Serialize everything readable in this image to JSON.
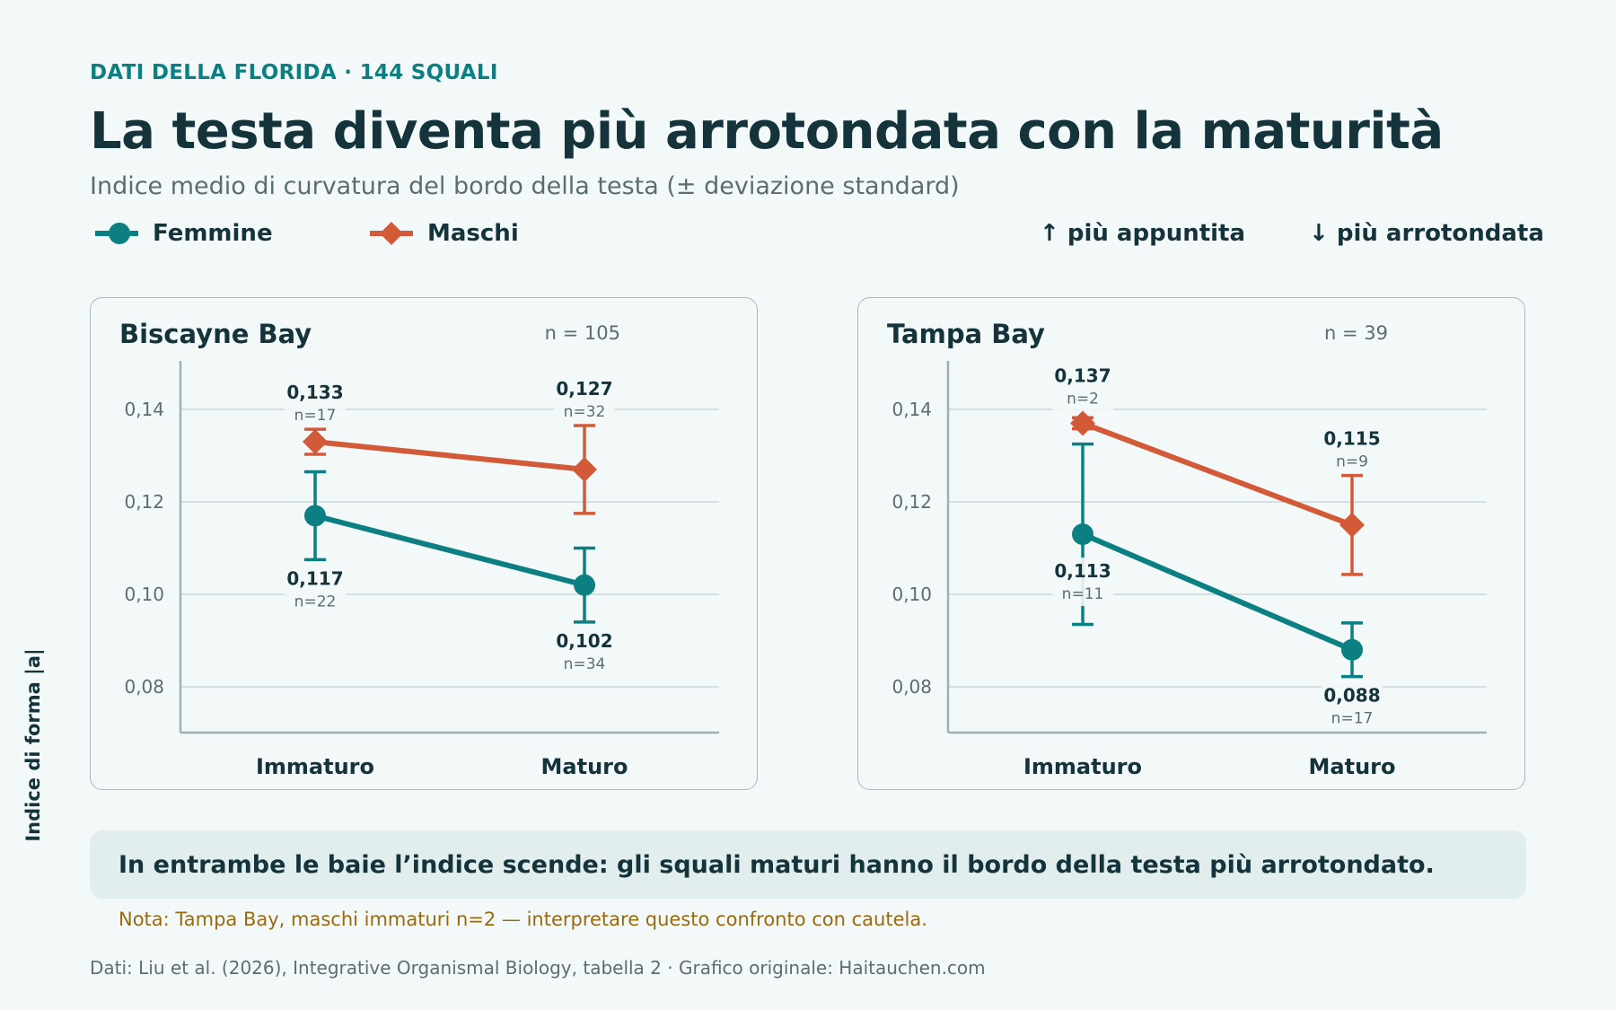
{
  "header": {
    "kicker": "DATI DELLA FLORIDA · 144 SQUALI",
    "title": "La testa diventa più arrotondata con la maturità",
    "subtitle": "Indice medio di curvatura del bordo della testa (± deviazione standard)"
  },
  "legend": {
    "female": "Femmine",
    "male": "Maschi",
    "up_hint": "↑ più appuntita",
    "down_hint": "↓ più arrotondata"
  },
  "colors": {
    "female": "#0c7f82",
    "male": "#d35a38",
    "grid": "#cbd7da",
    "axis": "#9eb0b5"
  },
  "y_axis_label": "Indice di forma |a|",
  "chart_data": [
    {
      "type": "line",
      "title": "Biscayne Bay",
      "n_label": "n = 105",
      "categories": [
        "Immaturo",
        "Maturo"
      ],
      "ylim": [
        0.07,
        0.148
      ],
      "yticks": [
        0.08,
        0.1,
        0.12,
        0.14
      ],
      "ytick_labels": [
        "0,08",
        "0,10",
        "0,12",
        "0,14"
      ],
      "series": [
        {
          "name": "Femmine",
          "key": "female",
          "marker": "circle",
          "values": [
            0.117,
            0.102
          ],
          "sd": [
            0.0095,
            0.008
          ],
          "value_labels": [
            "0,117",
            "0,102"
          ],
          "n_labels": [
            "n=22",
            "n=34"
          ]
        },
        {
          "name": "Maschi",
          "key": "male",
          "marker": "diamond",
          "values": [
            0.133,
            0.127
          ],
          "sd": [
            0.0027,
            0.0095
          ],
          "value_labels": [
            "0,133",
            "0,127"
          ],
          "n_labels": [
            "n=17",
            "n=32"
          ]
        }
      ]
    },
    {
      "type": "line",
      "title": "Tampa Bay",
      "n_label": "n = 39",
      "categories": [
        "Immaturo",
        "Maturo"
      ],
      "ylim": [
        0.07,
        0.148
      ],
      "yticks": [
        0.08,
        0.1,
        0.12,
        0.14
      ],
      "ytick_labels": [
        "0,08",
        "0,10",
        "0,12",
        "0,14"
      ],
      "series": [
        {
          "name": "Femmine",
          "key": "female",
          "marker": "circle",
          "values": [
            0.113,
            0.088
          ],
          "sd": [
            0.0195,
            0.0058
          ],
          "value_labels": [
            "0,113",
            "0,088"
          ],
          "n_labels": [
            "n=11",
            "n=17"
          ]
        },
        {
          "name": "Maschi",
          "key": "male",
          "marker": "diamond",
          "values": [
            0.137,
            0.115
          ],
          "sd": [
            0.0012,
            0.0107
          ],
          "value_labels": [
            "0,137",
            "0,115"
          ],
          "n_labels": [
            "n=2",
            "n=9"
          ]
        }
      ]
    }
  ],
  "takeaway": "In entrambe le baie l’indice scende: gli squali maturi hanno il bordo della testa più arrotondato.",
  "note": "Nota: Tampa Bay, maschi immaturi n=2 — interpretare questo confronto con cautela.",
  "source": "Dati: Liu et al. (2026), Integrative Organismal Biology, tabella 2 · Grafico originale: Haitauchen.com"
}
